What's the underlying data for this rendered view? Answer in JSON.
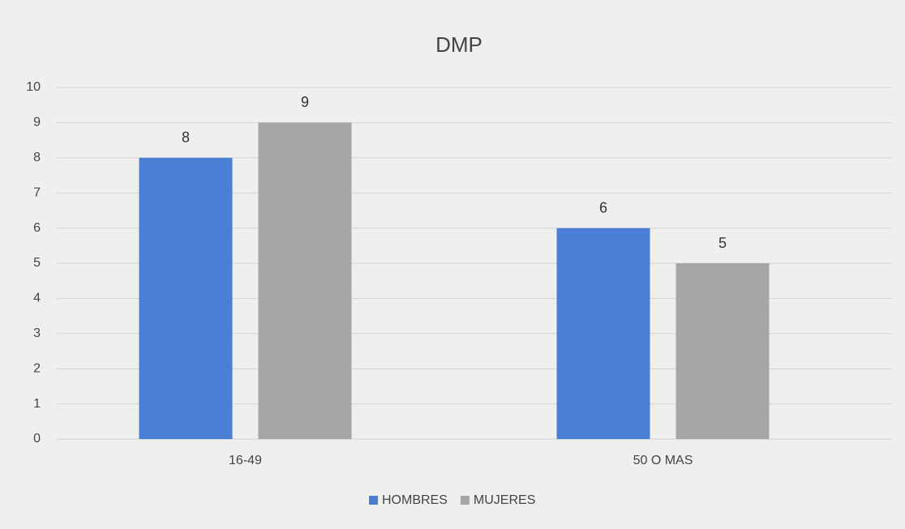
{
  "chart_data": {
    "type": "bar",
    "title": "DMP",
    "categories": [
      "16-49",
      "50 O MAS"
    ],
    "series": [
      {
        "name": "HOMBRES",
        "color": "#4a7fd6",
        "values": [
          8,
          6
        ]
      },
      {
        "name": "MUJERES",
        "color": "#a6a6a6",
        "values": [
          9,
          5
        ]
      }
    ],
    "ylim": [
      0,
      10
    ],
    "yticks": [
      0,
      1,
      2,
      3,
      4,
      5,
      6,
      7,
      8,
      9,
      10
    ],
    "grid": true,
    "legend": "bottom"
  }
}
